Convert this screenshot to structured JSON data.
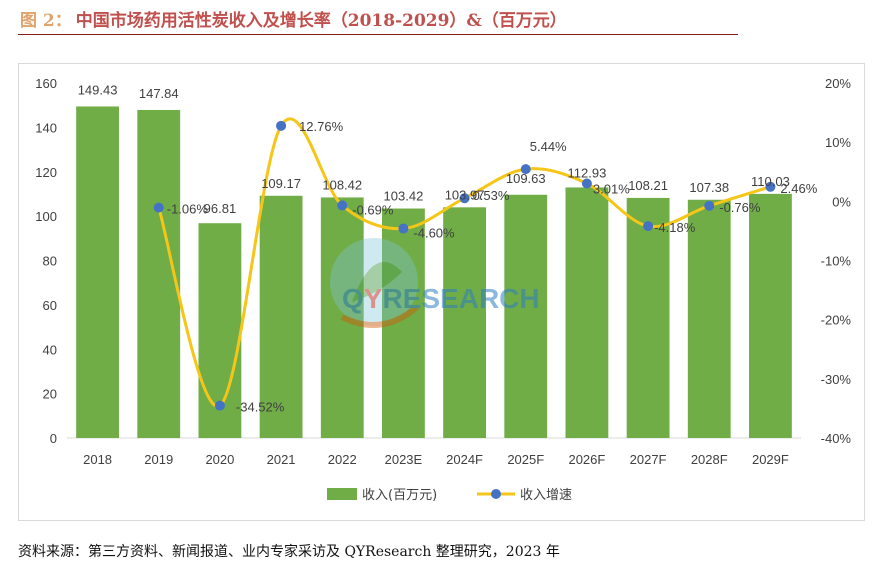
{
  "title": {
    "label": "图 2：",
    "text": "中国市场药用活性炭收入及增长率（2018-2029）&（百万元）"
  },
  "source_note": "资料来源：第三方资料、新闻报道、业内专家采访及 QYResearch 整理研究，2023 年",
  "watermark": {
    "text": "QYRESEARCH",
    "q_color": "#2e7fc1",
    "y_color": "#c0392b",
    "rest_color": "#2e7fc1"
  },
  "colors": {
    "bar": "#70ad47",
    "line": "#f5c518",
    "point": "#4472c4",
    "grid": "#d9d9d9",
    "axis_text": "#404040"
  },
  "chart_data": {
    "type": "bar",
    "categories": [
      "2018",
      "2019",
      "2020",
      "2021",
      "2022",
      "2023E",
      "2024F",
      "2025F",
      "2026F",
      "2027F",
      "2028F",
      "2029F"
    ],
    "series": [
      {
        "name": "收入(百万元)",
        "type": "bar",
        "axis": "left",
        "values": [
          149.43,
          147.84,
          96.81,
          109.17,
          108.42,
          103.42,
          103.97,
          109.63,
          112.93,
          108.21,
          107.38,
          110.03
        ],
        "labels": [
          "149.43",
          "147.84",
          "96.81",
          "109.17",
          "108.42",
          "103.42",
          "103.97",
          "109.63",
          "112.93",
          "108.21",
          "107.38",
          "110.03"
        ]
      },
      {
        "name": "收入增速",
        "type": "line",
        "axis": "right",
        "values": [
          null,
          -1.06,
          -34.52,
          12.76,
          -0.69,
          -4.6,
          0.53,
          5.44,
          3.01,
          -4.18,
          -0.76,
          2.46
        ],
        "labels": [
          "",
          "-1.06%",
          "-34.52%",
          "12.76%",
          "-0.69%",
          "-4.60%",
          "0.53%",
          "5.44%",
          "3.01%",
          "-4.18%",
          "-0.76%",
          "2.46%"
        ]
      }
    ],
    "y_left": {
      "min": 0,
      "max": 160,
      "ticks": [
        "0",
        "20",
        "40",
        "60",
        "80",
        "100",
        "120",
        "140",
        "160"
      ]
    },
    "y_right": {
      "min": -40,
      "max": 20,
      "ticks": [
        "-40%",
        "-30%",
        "-20%",
        "-10%",
        "0%",
        "10%",
        "20%"
      ]
    },
    "legend": {
      "position": "bottom",
      "entries": [
        "收入(百万元)",
        "收入增速"
      ]
    },
    "grid": false
  }
}
